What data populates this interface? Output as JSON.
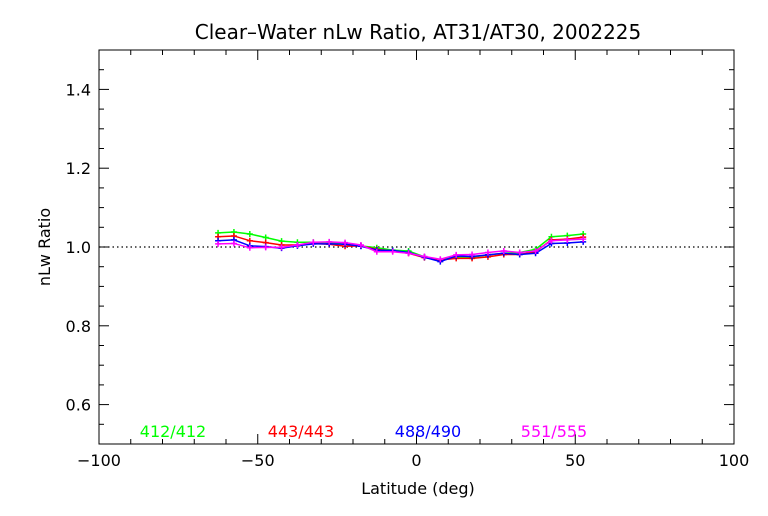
{
  "chart_data": {
    "type": "line",
    "title": "Clear–Water nLw Ratio, AT31/AT30, 2002225",
    "xlabel": "Latitude (deg)",
    "ylabel": "nLw Ratio",
    "xlim": [
      -100,
      100
    ],
    "ylim": [
      0.5,
      1.5
    ],
    "xticks": [
      -100,
      -50,
      0,
      50,
      100
    ],
    "xtick_labels": [
      "−100",
      "−50",
      "0",
      "50",
      "100"
    ],
    "yticks": [
      0.6,
      0.8,
      1.0,
      1.2,
      1.4
    ],
    "ytick_labels": [
      "0.6",
      "0.8",
      "1.0",
      "1.2",
      "1.4"
    ],
    "reference_line": 1.0,
    "legend_placement": "bottom inside",
    "x": [
      -62.5,
      -57.5,
      -52.5,
      -47.5,
      -42.5,
      -37.5,
      -32.5,
      -27.5,
      -22.5,
      -17.5,
      -12.5,
      -7.5,
      -2.5,
      2.5,
      7.5,
      12.5,
      17.5,
      22.5,
      27.5,
      32.5,
      37.5,
      42.5,
      47.5,
      52.5
    ],
    "series": [
      {
        "name": "412/412",
        "color": "#00ff00",
        "values": [
          1.036,
          1.038,
          1.033,
          1.024,
          1.015,
          1.012,
          1.012,
          1.011,
          1.007,
          1.003,
          0.998,
          0.992,
          0.99,
          0.975,
          0.967,
          0.975,
          0.974,
          0.98,
          0.984,
          0.986,
          0.994,
          1.026,
          1.029,
          1.033
        ]
      },
      {
        "name": "443/443",
        "color": "#ff0000",
        "values": [
          1.026,
          1.028,
          1.016,
          1.011,
          1.005,
          1.005,
          1.009,
          1.007,
          1.002,
          1.003,
          0.994,
          0.99,
          0.984,
          0.973,
          0.967,
          0.971,
          0.971,
          0.975,
          0.981,
          0.981,
          0.988,
          1.018,
          1.02,
          1.025
        ]
      },
      {
        "name": "488/490",
        "color": "#0000ff",
        "values": [
          1.016,
          1.018,
          1.003,
          1.001,
          0.997,
          1.003,
          1.008,
          1.008,
          1.007,
          1.002,
          0.992,
          0.991,
          0.986,
          0.974,
          0.963,
          0.977,
          0.976,
          0.98,
          0.984,
          0.981,
          0.984,
          1.009,
          1.01,
          1.013
        ]
      },
      {
        "name": "551/555",
        "color": "#ff00ff",
        "values": [
          1.008,
          1.009,
          0.998,
          0.999,
          0.999,
          1.005,
          1.012,
          1.013,
          1.011,
          1.005,
          0.988,
          0.988,
          0.984,
          0.976,
          0.969,
          0.98,
          0.981,
          0.986,
          0.99,
          0.986,
          0.99,
          1.016,
          1.018,
          1.02
        ]
      }
    ]
  }
}
